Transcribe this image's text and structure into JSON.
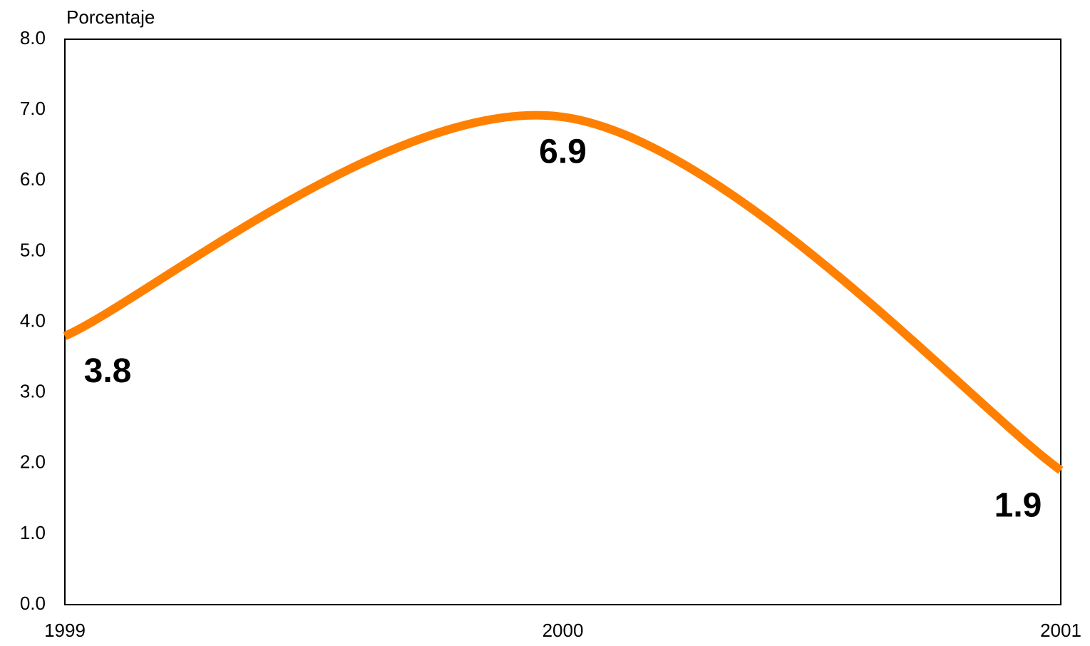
{
  "chart_data": {
    "type": "line",
    "smooth": true,
    "y_label": "Porcentaje",
    "x": [
      1999,
      2000,
      2001
    ],
    "values": [
      3.8,
      6.9,
      1.9
    ],
    "color": "#ff8000",
    "xlim": [
      1999,
      2001
    ],
    "xticks": [
      1999,
      2000,
      2001
    ],
    "ylim": [
      0,
      8
    ],
    "yticks": [
      {
        "value": 0,
        "label": "0.0"
      },
      {
        "value": 1,
        "label": "1.0"
      },
      {
        "value": 2,
        "label": "2.0"
      },
      {
        "value": 3,
        "label": "3.0"
      },
      {
        "value": 4,
        "label": "4.0"
      },
      {
        "value": 5,
        "label": "5.0"
      },
      {
        "value": 6,
        "label": "6.0"
      },
      {
        "value": 7,
        "label": "7.0"
      },
      {
        "value": 8,
        "label": "8.0"
      }
    ]
  }
}
